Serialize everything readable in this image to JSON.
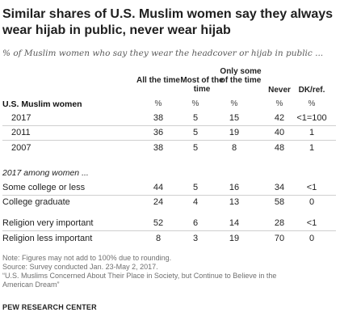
{
  "title": "Similar shares of U.S. Muslim women say they always wear hijab in public, never wear hijab",
  "subtitle": "% of Muslim women who say they wear the headcover or hijab in public ...",
  "columns": {
    "all_the_time": "All the time",
    "most_of_the_time": "Most of the time",
    "only_some": "Only some of the time",
    "never": "Never",
    "dk_ref": "DK/ref."
  },
  "percent_symbol": "%",
  "sections": {
    "us_muslim_women": "U.S. Muslim women",
    "among_women_2017": "2017 among women ..."
  },
  "rows": [
    {
      "label": "2017",
      "all": "38",
      "most": "5",
      "some": "15",
      "never": "42",
      "dk": "<1=100"
    },
    {
      "label": "2011",
      "all": "36",
      "most": "5",
      "some": "19",
      "never": "40",
      "dk": "1"
    },
    {
      "label": "2007",
      "all": "38",
      "most": "5",
      "some": "8",
      "never": "48",
      "dk": "1"
    },
    {
      "label": "Some college or less",
      "all": "44",
      "most": "5",
      "some": "16",
      "never": "34",
      "dk": "<1"
    },
    {
      "label": "College graduate",
      "all": "24",
      "most": "4",
      "some": "13",
      "never": "58",
      "dk": "0"
    },
    {
      "label": "Religion very important",
      "all": "52",
      "most": "6",
      "some": "14",
      "never": "28",
      "dk": "<1"
    },
    {
      "label": "Religion less important",
      "all": "8",
      "most": "3",
      "some": "19",
      "never": "70",
      "dk": "0"
    }
  ],
  "notes": {
    "note": "Note: Figures may not add to 100% due to rounding.",
    "source": "Source: Survey conducted Jan. 23-May 2, 2017.",
    "report_line1": "“U.S. Muslims Concerned About Their Place in Society, but Continue to Believe in the",
    "report_line2": "American Dream”"
  },
  "brand": "PEW RESEARCH CENTER"
}
